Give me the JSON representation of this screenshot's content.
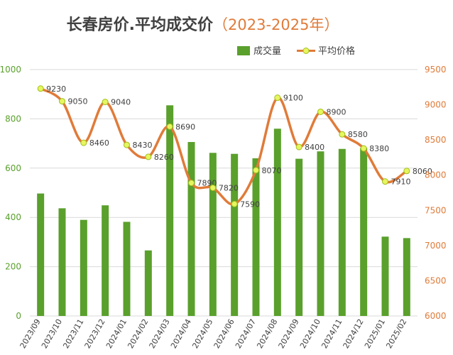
{
  "chart_data": {
    "type": "bar+line",
    "title": "长春房价.平均成交价",
    "title_range": "（2023-2025年）",
    "categories": [
      "2023/09",
      "2023/10",
      "2023/11",
      "2023/12",
      "2024/01",
      "2024/02",
      "2024/03",
      "2024/04",
      "2024/05",
      "2024/06",
      "2024/07",
      "2024/08",
      "2024/09",
      "2024/10",
      "2024/11",
      "2024/12",
      "2025/01",
      "2025/02"
    ],
    "series": [
      {
        "name": "成交量",
        "type": "bar",
        "axis": "left",
        "color": "#5aa02c",
        "values": [
          497,
          437,
          390,
          449,
          382,
          266,
          855,
          706,
          662,
          658,
          640,
          760,
          638,
          668,
          678,
          682,
          322,
          316
        ]
      },
      {
        "name": "平均价格",
        "type": "line",
        "axis": "right",
        "color": "#e07b39",
        "marker_color": "#e6f560",
        "values": [
          9230,
          9050,
          8460,
          9040,
          8430,
          8260,
          8690,
          7890,
          7820,
          7590,
          8070,
          9100,
          8400,
          8900,
          8580,
          8380,
          7910,
          8060
        ]
      }
    ],
    "y_left": {
      "min": 0,
      "max": 1000,
      "ticks": [
        0,
        200,
        400,
        600,
        800,
        1000
      ]
    },
    "y_right": {
      "min": 6000,
      "max": 9500,
      "ticks": [
        6000,
        6500,
        7000,
        7500,
        8000,
        8500,
        9000,
        9500
      ]
    },
    "grid": true,
    "legend_position": "top-right",
    "colors": {
      "title": "#404040",
      "title_range": "#e07b39",
      "left_axis_text": "#5aa02c",
      "right_axis_text": "#e07b39",
      "grid": "#d9d9d9",
      "label_text": "#404040"
    }
  }
}
